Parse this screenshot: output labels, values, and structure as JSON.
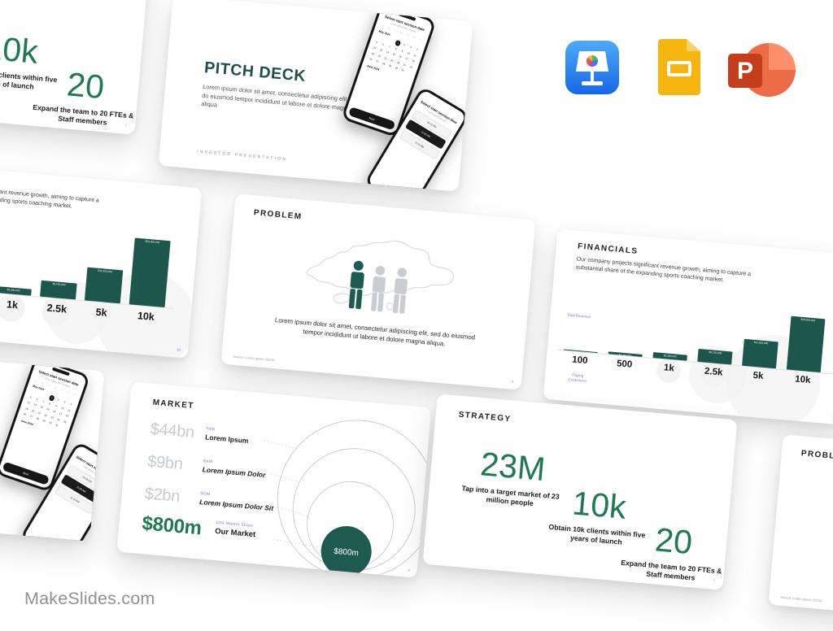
{
  "site": {
    "logo_text": "MakeSlides.com"
  },
  "export_options": {
    "keynote": "keynote",
    "google_slides": "google-slides",
    "powerpoint": "powerpoint",
    "powerpoint_letter": "P"
  },
  "slides": {
    "cover": {
      "title": "PITCH DECK",
      "body": "Lorem ipsum dolor sit amet, consectetur adipiscing elit, sed do eiusmod tempor incididunt ut labore et dolore magna aliqua",
      "footer": "INVESTOR PRESENTATION",
      "phone_date": {
        "title": "Select start session date",
        "subtitle": "Lorem ipsum dolor sit amet",
        "weekdays": [
          "S",
          "M",
          "T",
          "W",
          "T",
          "F",
          "S"
        ],
        "month_current": "May 2024",
        "month_next": "June 2024",
        "selected_day": "1",
        "cta": "Next"
      },
      "phone_time": {
        "title": "Select start session time",
        "subtitle": "Lorem ipsum dolor sit",
        "slots": [
          "10:45 AM",
          "11:00 AM",
          "11:15 AM"
        ]
      }
    },
    "problem": {
      "title": "PROBLEM",
      "caption": "Lorem ipsum dolor sit amet, consectetur adipiscing elit, sed do eiusmod tempor incididunt ut labore et dolore magna aliqua.",
      "source": "Source: Lorem Ipsum (2024)",
      "page": "3"
    },
    "financials": {
      "title": "FINANCIALS",
      "body": "Our company projects significant revenue growth, aiming to capture a substantial share of the expanding sports coaching market.",
      "y_axis_label": "Total Revenue",
      "x_axis_label": "Paying Customers",
      "page": "10"
    },
    "market": {
      "title": "MARKET",
      "rows": [
        {
          "value": "$44bn",
          "tag": "TAM",
          "label": "Lorem Ipsum"
        },
        {
          "value": "$9bn",
          "tag": "SAM",
          "label": "Lorem Ipsum Dolor"
        },
        {
          "value": "$2bn",
          "tag": "SOM",
          "label": "Lorem Ipsum Dolor Sit"
        },
        {
          "value": "$800m",
          "tag": "10% Market Share",
          "label": "Our Market"
        }
      ],
      "bubble_label": "$800m",
      "page": "4"
    },
    "strategy": {
      "title": "STRATEGY",
      "stats": [
        {
          "value": "23M",
          "caption": "Tap into a target market of 23 million people"
        },
        {
          "value": "10k",
          "caption": "Obtain 10k clients within five years of launch"
        },
        {
          "value": "20",
          "caption": "Expand the team to 20 FTEs & Staff members"
        }
      ],
      "page": "7"
    }
  },
  "chart_data": [
    {
      "type": "bar",
      "title": "FINANCIALS",
      "categories": [
        "100",
        "500",
        "1k",
        "2.5k",
        "5k",
        "10k"
      ],
      "values": [
        230000,
        1150000,
        2300000,
        5750000,
        11500000,
        23000000
      ],
      "value_labels": [
        "$230,000",
        "$1,150,000",
        "$2,300,000",
        "$5,750,000",
        "$11,500,000",
        "$23,000,000"
      ],
      "xlabel": "Paying Customers",
      "ylabel": "Total Revenue",
      "ylim": [
        0,
        23000000
      ],
      "grid": false,
      "legend": false
    },
    {
      "type": "bubble",
      "title": "MARKET",
      "categories": [
        "TAM",
        "SAM",
        "SOM",
        "Our Market (10% Market Share)"
      ],
      "values": [
        44000000000,
        9000000000,
        2000000000,
        800000000
      ],
      "value_labels": [
        "$44bn",
        "$9bn",
        "$2bn",
        "$800m"
      ]
    }
  ],
  "colors": {
    "green_accent": "#1E7A52",
    "teal_dark": "#1D564C",
    "purple_label": "#7B7BD6",
    "gray_value": "#C7CBCD",
    "keynote_blue": "#2F8BF0",
    "slides_yellow": "#F6B60E",
    "powerpoint_red": "#C43E1C"
  }
}
